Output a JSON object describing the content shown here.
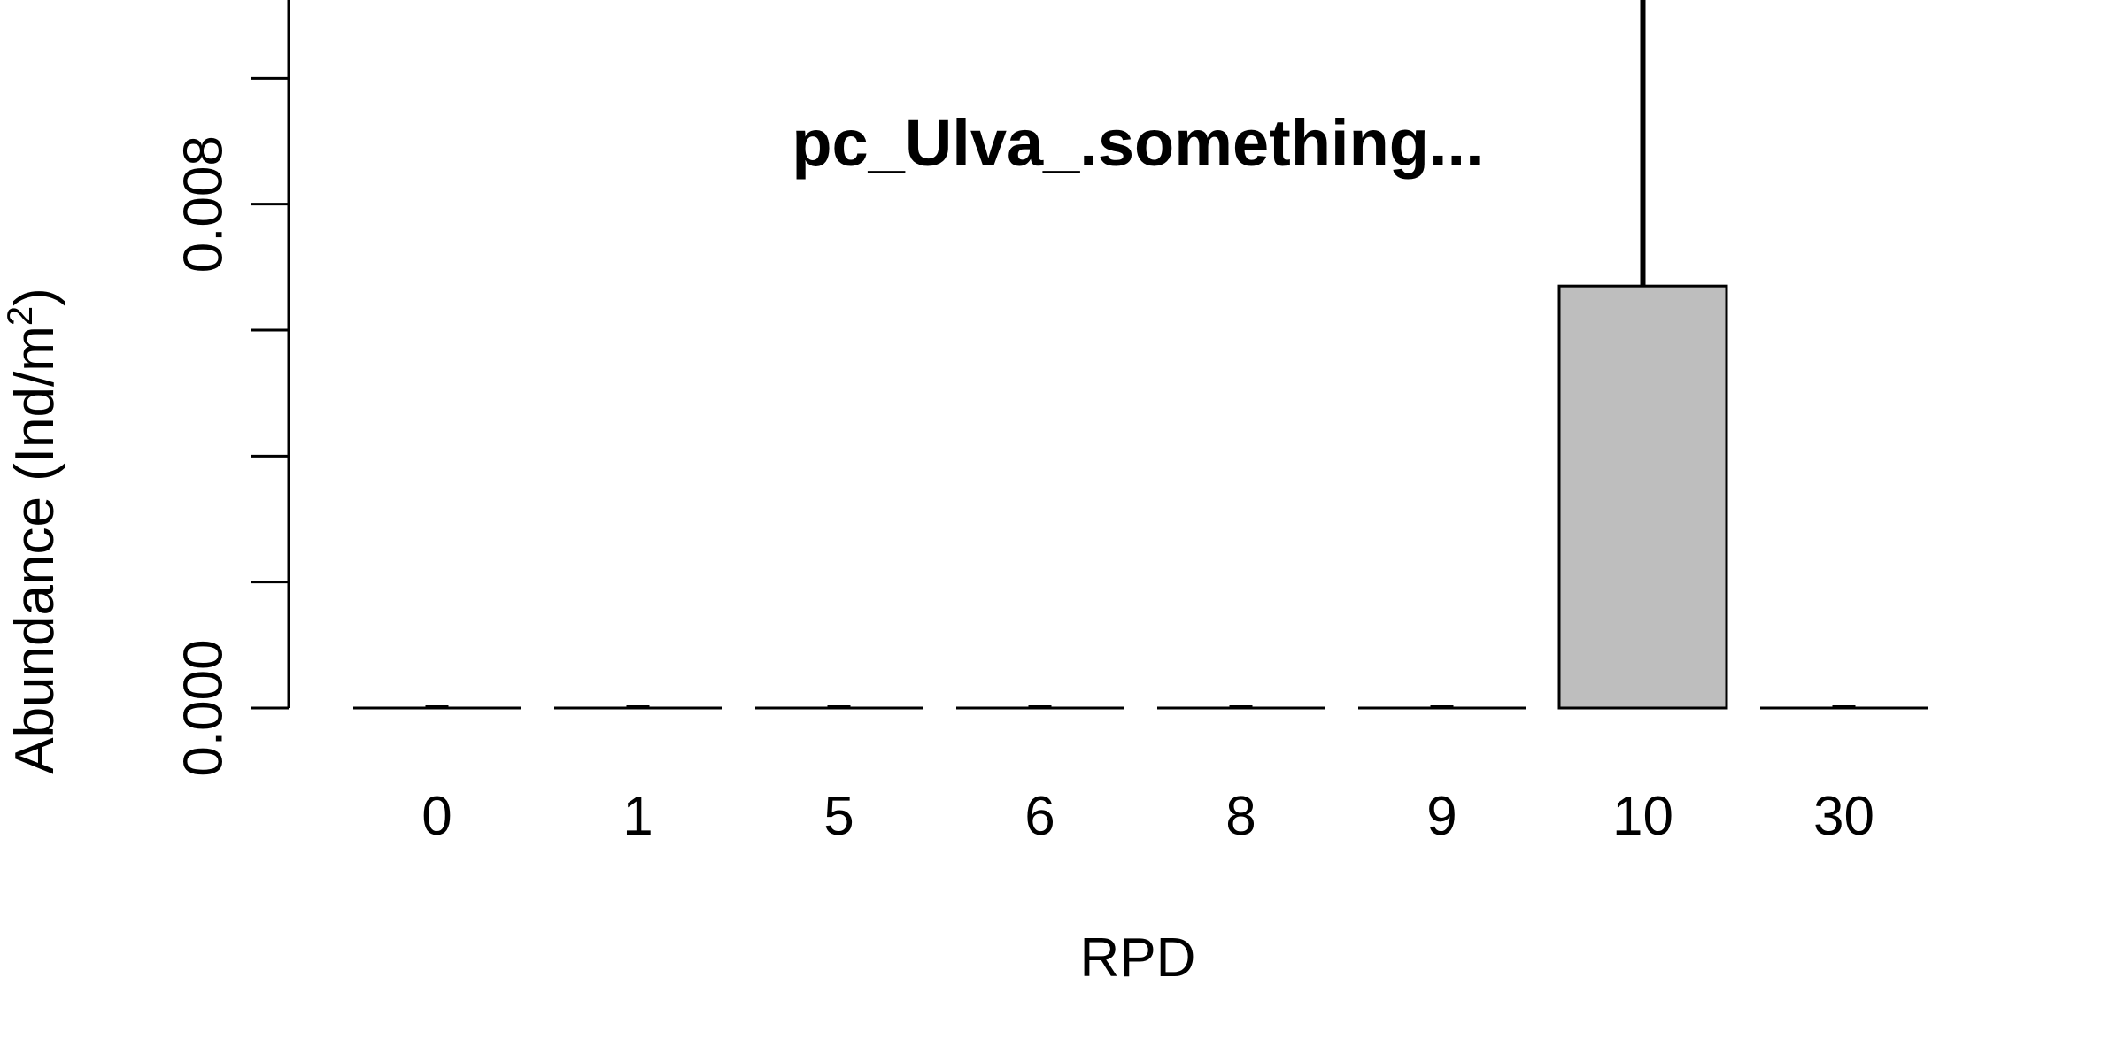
{
  "chart_data": {
    "type": "bar",
    "title": "pc_Ulva_.something...",
    "xlabel": "RPD",
    "ylabel": {
      "main": "Abundance (Ind/m",
      "superscript": "2",
      "close": ")"
    },
    "categories": [
      "0",
      "1",
      "5",
      "6",
      "8",
      "9",
      "10",
      "30"
    ],
    "values": [
      0,
      0,
      0,
      0,
      0,
      0,
      0.0067,
      0
    ],
    "error_upper": [
      0,
      0,
      0,
      0,
      0,
      0,
      0.0133,
      0
    ],
    "ylim": [
      0,
      0.012
    ],
    "y_ticks": [
      0,
      0.002,
      0.004,
      0.006,
      0.008,
      0.01,
      0.012
    ],
    "y_tick_labels": [
      {
        "value": 0,
        "label": "0.000"
      },
      {
        "value": 0.008,
        "label": "0.008"
      }
    ],
    "bar_fill": "#bebebe",
    "bar_stroke": "#000000",
    "grid": false,
    "legend": "none"
  }
}
